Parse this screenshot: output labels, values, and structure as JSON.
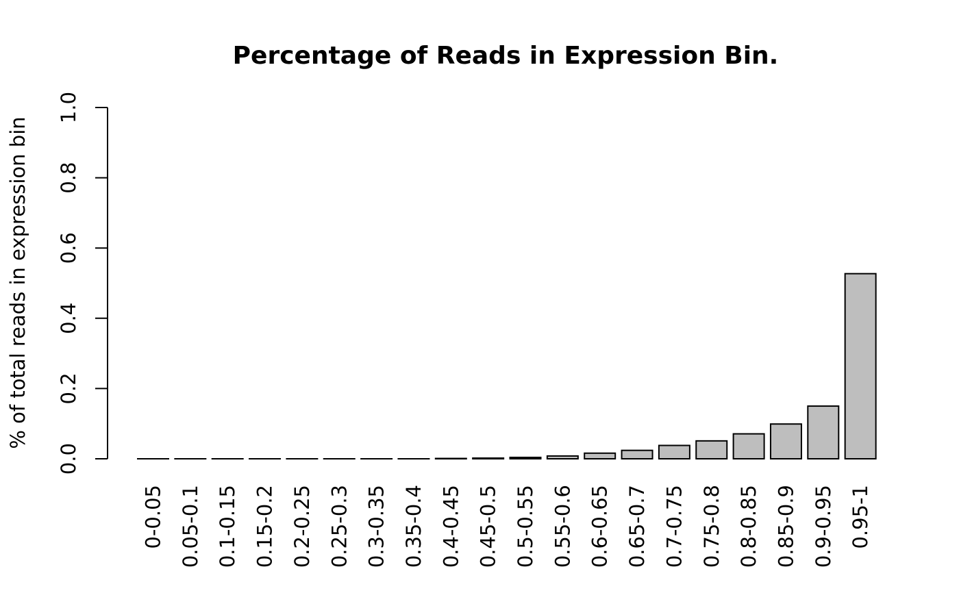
{
  "chart_data": {
    "type": "bar",
    "title": "Percentage of Reads in Expression Bin.",
    "xlabel": "",
    "ylabel": "% of total reads in expression bin",
    "ylim": [
      0,
      1.0
    ],
    "yticks": [
      "0.0",
      "0.2",
      "0.4",
      "0.6",
      "0.8",
      "1.0"
    ],
    "grid": false,
    "bar_color": "#bebebe",
    "categories": [
      "0-0.05",
      "0.05-0.1",
      "0.1-0.15",
      "0.15-0.2",
      "0.2-0.25",
      "0.25-0.3",
      "0.3-0.35",
      "0.35-0.4",
      "0.4-0.45",
      "0.45-0.5",
      "0.5-0.55",
      "0.55-0.6",
      "0.6-0.65",
      "0.65-0.7",
      "0.7-0.75",
      "0.75-0.8",
      "0.8-0.85",
      "0.85-0.9",
      "0.9-0.95",
      "0.95-1"
    ],
    "values": [
      0.0,
      0.0,
      0.0,
      0.0,
      0.0,
      0.0,
      0.0,
      0.0,
      0.001,
      0.002,
      0.004,
      0.008,
      0.016,
      0.024,
      0.038,
      0.051,
      0.071,
      0.099,
      0.15,
      0.527
    ]
  }
}
